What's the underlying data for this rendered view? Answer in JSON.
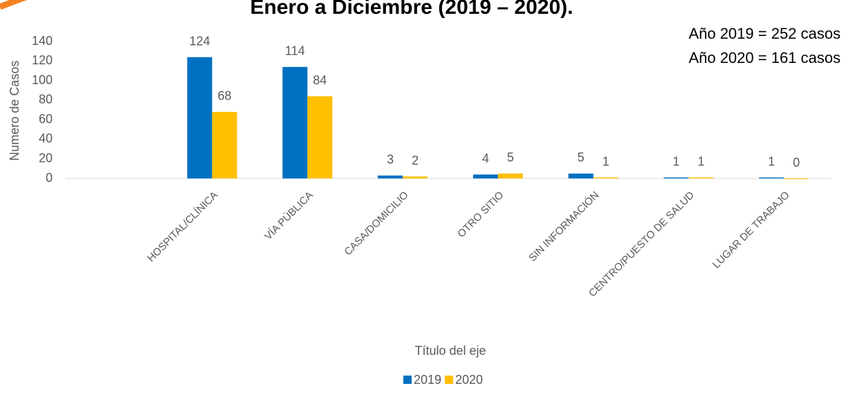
{
  "chart_data": {
    "type": "bar",
    "title": "Enero a Diciembre (2019 – 2020).",
    "annotations": [
      "Año 2019 = 252 casos",
      "Año 2020 = 161 casos"
    ],
    "y_axis_label": "Numero de Casos",
    "x_axis_label": "Título del eje",
    "categories": [
      null,
      "HOSPITAL/CLÍNICA",
      "VÍA PÚBLICA",
      "CASA/DOMICILIO",
      "OTRO SITIO",
      "SIN INFORMACIÓN",
      "CENTRO/PUESTO DE SALUD",
      "LUGAR DE TRABAJO"
    ],
    "series": [
      {
        "name": "2019",
        "color": "#0070c0",
        "values": [
          null,
          124,
          114,
          3,
          4,
          5,
          1,
          1
        ]
      },
      {
        "name": "2020",
        "color": "#ffc000",
        "values": [
          null,
          68,
          84,
          2,
          5,
          1,
          1,
          0
        ]
      }
    ],
    "ylim": [
      0,
      140
    ],
    "yticks": [
      0,
      20,
      40,
      60,
      80,
      100,
      120,
      140
    ],
    "legend": "bottom"
  }
}
